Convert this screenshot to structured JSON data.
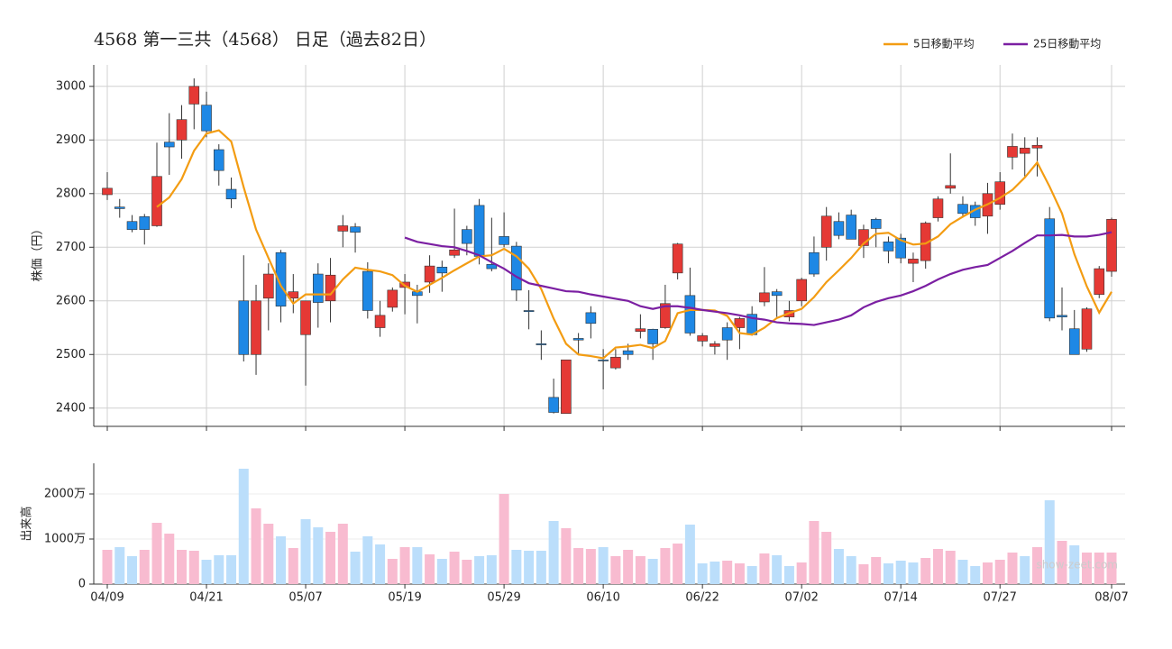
{
  "chart_data": [
    {
      "type": "candlestick",
      "title": "4568 第一三共（4568） 日足（過去82日）",
      "y_label": "株価（円）",
      "categories": [
        "04/09",
        null,
        null,
        null,
        null,
        null,
        null,
        null,
        "04/21",
        null,
        null,
        null,
        null,
        null,
        null,
        null,
        "05/07",
        null,
        null,
        null,
        null,
        null,
        null,
        null,
        "05/19",
        null,
        null,
        null,
        null,
        null,
        null,
        null,
        "05/29",
        null,
        null,
        null,
        null,
        null,
        null,
        null,
        "06/10",
        null,
        null,
        null,
        null,
        null,
        null,
        null,
        "06/22",
        null,
        null,
        null,
        null,
        null,
        null,
        null,
        "07/02",
        null,
        null,
        null,
        null,
        null,
        null,
        null,
        "07/14",
        null,
        null,
        null,
        null,
        null,
        null,
        null,
        "07/27",
        null,
        null,
        null,
        null,
        null,
        null,
        null,
        null,
        "08/07"
      ],
      "open": [
        2798,
        2775,
        2748,
        2757,
        2740,
        2896,
        2900,
        2967,
        2965,
        2882,
        2808,
        2600,
        2500,
        2605,
        2690,
        2605,
        2537,
        2650,
        2600,
        2730,
        2738,
        2655,
        2550,
        2588,
        2625,
        2617,
        2635,
        2663,
        2685,
        2733,
        2778,
        2668,
        2720,
        2702,
        2582,
        2520,
        2420,
        2390,
        2530,
        2578,
        2490,
        2475,
        2507,
        2543,
        2547,
        2550,
        2652,
        2610,
        2525,
        2515,
        2550,
        2550,
        2575,
        2598,
        2617,
        2570,
        2600,
        2690,
        2700,
        2748,
        2760,
        2703,
        2752,
        2710,
        2717,
        2670,
        2675,
        2755,
        2810,
        2780,
        2778,
        2758,
        2780,
        2868,
        2875,
        2885,
        2753,
        2573,
        2548,
        2510,
        2612,
        2655
      ],
      "high": [
        2840,
        2790,
        2760,
        2762,
        2895,
        2950,
        2965,
        3015,
        2990,
        2892,
        2830,
        2685,
        2630,
        2670,
        2695,
        2650,
        2600,
        2670,
        2680,
        2760,
        2745,
        2672,
        2600,
        2625,
        2650,
        2630,
        2685,
        2675,
        2772,
        2740,
        2790,
        2755,
        2765,
        2710,
        2620,
        2545,
        2455,
        2490,
        2540,
        2590,
        2510,
        2510,
        2520,
        2575,
        2548,
        2630,
        2708,
        2662,
        2540,
        2525,
        2560,
        2570,
        2590,
        2663,
        2622,
        2600,
        2643,
        2720,
        2775,
        2765,
        2770,
        2742,
        2755,
        2720,
        2725,
        2690,
        2748,
        2795,
        2875,
        2795,
        2785,
        2820,
        2840,
        2912,
        2905,
        2905,
        2775,
        2625,
        2583,
        2588,
        2665,
        2755
      ],
      "low": [
        2788,
        2755,
        2728,
        2705,
        2738,
        2835,
        2865,
        2920,
        2905,
        2815,
        2773,
        2487,
        2462,
        2545,
        2560,
        2577,
        2442,
        2550,
        2560,
        2700,
        2690,
        2567,
        2533,
        2580,
        2575,
        2558,
        2615,
        2617,
        2680,
        2685,
        2668,
        2655,
        2700,
        2600,
        2547,
        2490,
        2390,
        2390,
        2500,
        2530,
        2435,
        2472,
        2490,
        2530,
        2490,
        2548,
        2640,
        2535,
        2515,
        2500,
        2490,
        2510,
        2535,
        2590,
        2570,
        2562,
        2590,
        2645,
        2675,
        2715,
        2715,
        2680,
        2700,
        2670,
        2670,
        2635,
        2660,
        2748,
        2800,
        2755,
        2740,
        2725,
        2770,
        2845,
        2830,
        2832,
        2562,
        2545,
        2500,
        2505,
        2605,
        2645
      ],
      "close": [
        2810,
        2772,
        2733,
        2733,
        2832,
        2887,
        2938,
        3000,
        2917,
        2843,
        2790,
        2500,
        2600,
        2650,
        2590,
        2617,
        2600,
        2597,
        2648,
        2740,
        2728,
        2582,
        2573,
        2620,
        2635,
        2610,
        2665,
        2652,
        2695,
        2707,
        2683,
        2660,
        2705,
        2620,
        2580,
        2518,
        2392,
        2490,
        2527,
        2558,
        2488,
        2495,
        2500,
        2548,
        2520,
        2595,
        2706,
        2540,
        2535,
        2520,
        2527,
        2567,
        2537,
        2615,
        2610,
        2582,
        2640,
        2650,
        2758,
        2722,
        2715,
        2733,
        2735,
        2693,
        2680,
        2678,
        2745,
        2790,
        2815,
        2763,
        2755,
        2800,
        2822,
        2888,
        2885,
        2890,
        2568,
        2570,
        2500,
        2585,
        2660,
        2752
      ],
      "up_color": "#e53935",
      "down_color": "#1e88e5",
      "series": [
        {
          "name": "5日移動平均",
          "color": "#f39c12",
          "values": [
            null,
            null,
            null,
            null,
            2775,
            2793,
            2827,
            2880,
            2912,
            2918,
            2897,
            2812,
            2733,
            2680,
            2628,
            2595,
            2612,
            2612,
            2612,
            2640,
            2662,
            2658,
            2655,
            2648,
            2628,
            2617,
            2630,
            2643,
            2657,
            2670,
            2683,
            2685,
            2697,
            2683,
            2660,
            2622,
            2567,
            2520,
            2500,
            2497,
            2493,
            2513,
            2515,
            2518,
            2512,
            2525,
            2577,
            2583,
            2583,
            2582,
            2572,
            2540,
            2537,
            2550,
            2568,
            2577,
            2585,
            2607,
            2635,
            2657,
            2680,
            2707,
            2725,
            2727,
            2713,
            2705,
            2707,
            2720,
            2743,
            2757,
            2770,
            2780,
            2792,
            2807,
            2830,
            2858,
            2813,
            2763,
            2687,
            2627,
            2578,
            2617
          ]
        },
        {
          "name": "25日移動平均",
          "color": "#7b1fa2",
          "values": [
            null,
            null,
            null,
            null,
            null,
            null,
            null,
            null,
            null,
            null,
            null,
            null,
            null,
            null,
            null,
            null,
            null,
            null,
            null,
            null,
            null,
            null,
            null,
            null,
            2718,
            2710,
            2706,
            2702,
            2700,
            2693,
            2685,
            2672,
            2660,
            2645,
            2633,
            2628,
            2623,
            2618,
            2617,
            2612,
            2608,
            2604,
            2600,
            2590,
            2585,
            2590,
            2590,
            2587,
            2583,
            2580,
            2577,
            2573,
            2568,
            2565,
            2560,
            2558,
            2557,
            2555,
            2560,
            2565,
            2573,
            2588,
            2598,
            2605,
            2610,
            2618,
            2628,
            2640,
            2650,
            2658,
            2663,
            2667,
            2680,
            2693,
            2708,
            2722,
            2722,
            2723,
            2720,
            2720,
            2723,
            2728
          ]
        }
      ],
      "ylim": [
        2366,
        3040
      ],
      "yticks": [
        2400,
        2500,
        2600,
        2700,
        2800,
        2900,
        3000
      ],
      "grid": true,
      "legend": "upper right"
    },
    {
      "type": "bar",
      "y_label": "出来高",
      "watermark": "show-zeet.com",
      "values": [
        760,
        820,
        620,
        760,
        1360,
        1120,
        760,
        740,
        540,
        640,
        640,
        2560,
        1680,
        1340,
        1060,
        800,
        1440,
        1260,
        1160,
        1340,
        720,
        1060,
        880,
        560,
        820,
        820,
        660,
        560,
        720,
        540,
        620,
        640,
        2000,
        760,
        740,
        740,
        1400,
        1240,
        800,
        780,
        820,
        620,
        760,
        620,
        560,
        800,
        900,
        1320,
        460,
        500,
        520,
        460,
        400,
        680,
        640,
        400,
        480,
        1400,
        1160,
        780,
        620,
        440,
        600,
        460,
        520,
        480,
        580,
        780,
        740,
        540,
        400,
        480,
        540,
        700,
        620,
        820,
        1860,
        960,
        860,
        700,
        700,
        700
      ],
      "up_color": "#f8bbd0",
      "down_color": "#bbdefb",
      "ylim": [
        0,
        2680
      ],
      "yticks": [
        0,
        {
          "value": 1000,
          "label": "1000万"
        },
        {
          "value": 2000,
          "label": "2000万"
        }
      ],
      "grid": true
    }
  ]
}
